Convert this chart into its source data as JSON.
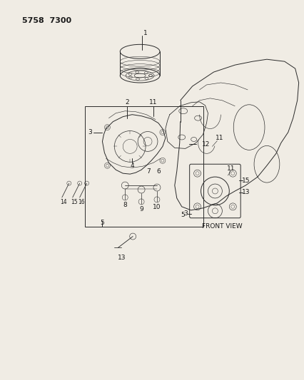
{
  "title": "5758  7300",
  "bg_color": "#f0ece4",
  "line_color": "#2a2a2a",
  "label_color": "#1a1a1a",
  "fig_width": 4.27,
  "fig_height": 5.33,
  "dpi": 100,
  "lw": 0.7
}
